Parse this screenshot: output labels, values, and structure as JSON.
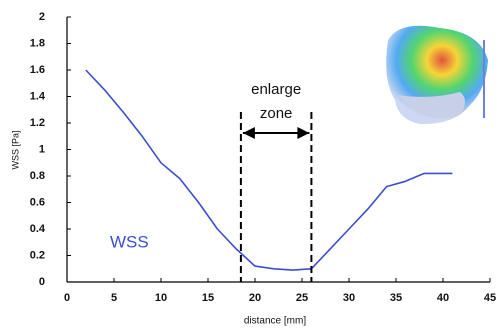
{
  "chart_data": {
    "type": "line",
    "x_label": "distance [mm]",
    "y_label": "WSS [Pa]",
    "x": [
      2,
      4,
      6,
      8,
      10,
      12,
      14,
      16,
      18,
      20,
      22,
      24,
      26,
      28,
      30,
      32,
      34,
      36,
      38,
      41
    ],
    "series": [
      {
        "name": "WSS",
        "color": "#3a4fd0",
        "values": [
          1.6,
          1.45,
          1.28,
          1.1,
          0.9,
          0.78,
          0.6,
          0.4,
          0.25,
          0.12,
          0.1,
          0.09,
          0.1,
          0.25,
          0.4,
          0.55,
          0.72,
          0.76,
          0.82,
          0.82
        ]
      }
    ],
    "xlim": [
      0,
      45
    ],
    "xticks": [
      0,
      5,
      10,
      15,
      20,
      25,
      30,
      35,
      40,
      45
    ],
    "ylim": [
      0,
      2
    ],
    "yticks": [
      0,
      0.2,
      0.4,
      0.6,
      0.8,
      1,
      1.2,
      1.4,
      1.6,
      1.8,
      2
    ],
    "grid": false,
    "annotation": {
      "lines": [
        "enlarge",
        "zone"
      ],
      "x": [
        18.5,
        26
      ]
    }
  }
}
